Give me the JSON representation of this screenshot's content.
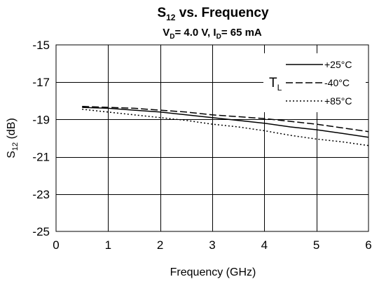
{
  "chart_data": {
    "type": "line",
    "title": "S12 vs. Frequency",
    "title_parts": {
      "main": "S",
      "main_sub": "12",
      "rest": " vs. Frequency"
    },
    "subtitle": "VD= 4.0 V,  ID= 65 mA",
    "subtitle_parts": {
      "v": "V",
      "v_sub": "D",
      "v_rest": "= 4.0 V,  ",
      "i": "I",
      "i_sub": "D",
      "i_rest": "= 65 mA"
    },
    "xlabel": "Frequency (GHz)",
    "ylabel": "S12 (dB)",
    "ylabel_parts": {
      "main": "S",
      "sub": "12",
      "rest": " (dB)"
    },
    "xlim": [
      0,
      6
    ],
    "ylim": [
      -25,
      -15
    ],
    "x_ticks": [
      0,
      1,
      2,
      3,
      4,
      5,
      6
    ],
    "y_ticks": [
      -15,
      -17,
      -19,
      -21,
      -23,
      -25
    ],
    "grid": true,
    "legend_placement": "top-right",
    "legend_group": {
      "main": "T",
      "sub": "L"
    },
    "series": [
      {
        "name": "+25°C",
        "style": "solid",
        "x": [
          0.5,
          1,
          1.5,
          2,
          2.5,
          3,
          3.5,
          4,
          4.5,
          5,
          5.5,
          6
        ],
        "y": [
          -18.35,
          -18.4,
          -18.5,
          -18.6,
          -18.75,
          -18.9,
          -19.05,
          -19.2,
          -19.4,
          -19.55,
          -19.75,
          -19.95
        ]
      },
      {
        "name": "-40°C",
        "style": "dashed",
        "x": [
          0.5,
          1,
          1.5,
          2,
          2.5,
          3,
          3.5,
          4,
          4.5,
          5,
          5.5,
          6
        ],
        "y": [
          -18.3,
          -18.35,
          -18.4,
          -18.5,
          -18.6,
          -18.75,
          -18.85,
          -18.95,
          -19.1,
          -19.25,
          -19.45,
          -19.65
        ]
      },
      {
        "name": "+85°C",
        "style": "dotted",
        "x": [
          0.5,
          1,
          1.5,
          2,
          2.5,
          3,
          3.5,
          4,
          4.5,
          5,
          5.5,
          6
        ],
        "y": [
          -18.45,
          -18.6,
          -18.75,
          -18.9,
          -19.05,
          -19.25,
          -19.4,
          -19.6,
          -19.85,
          -20.05,
          -20.2,
          -20.4
        ]
      }
    ]
  }
}
